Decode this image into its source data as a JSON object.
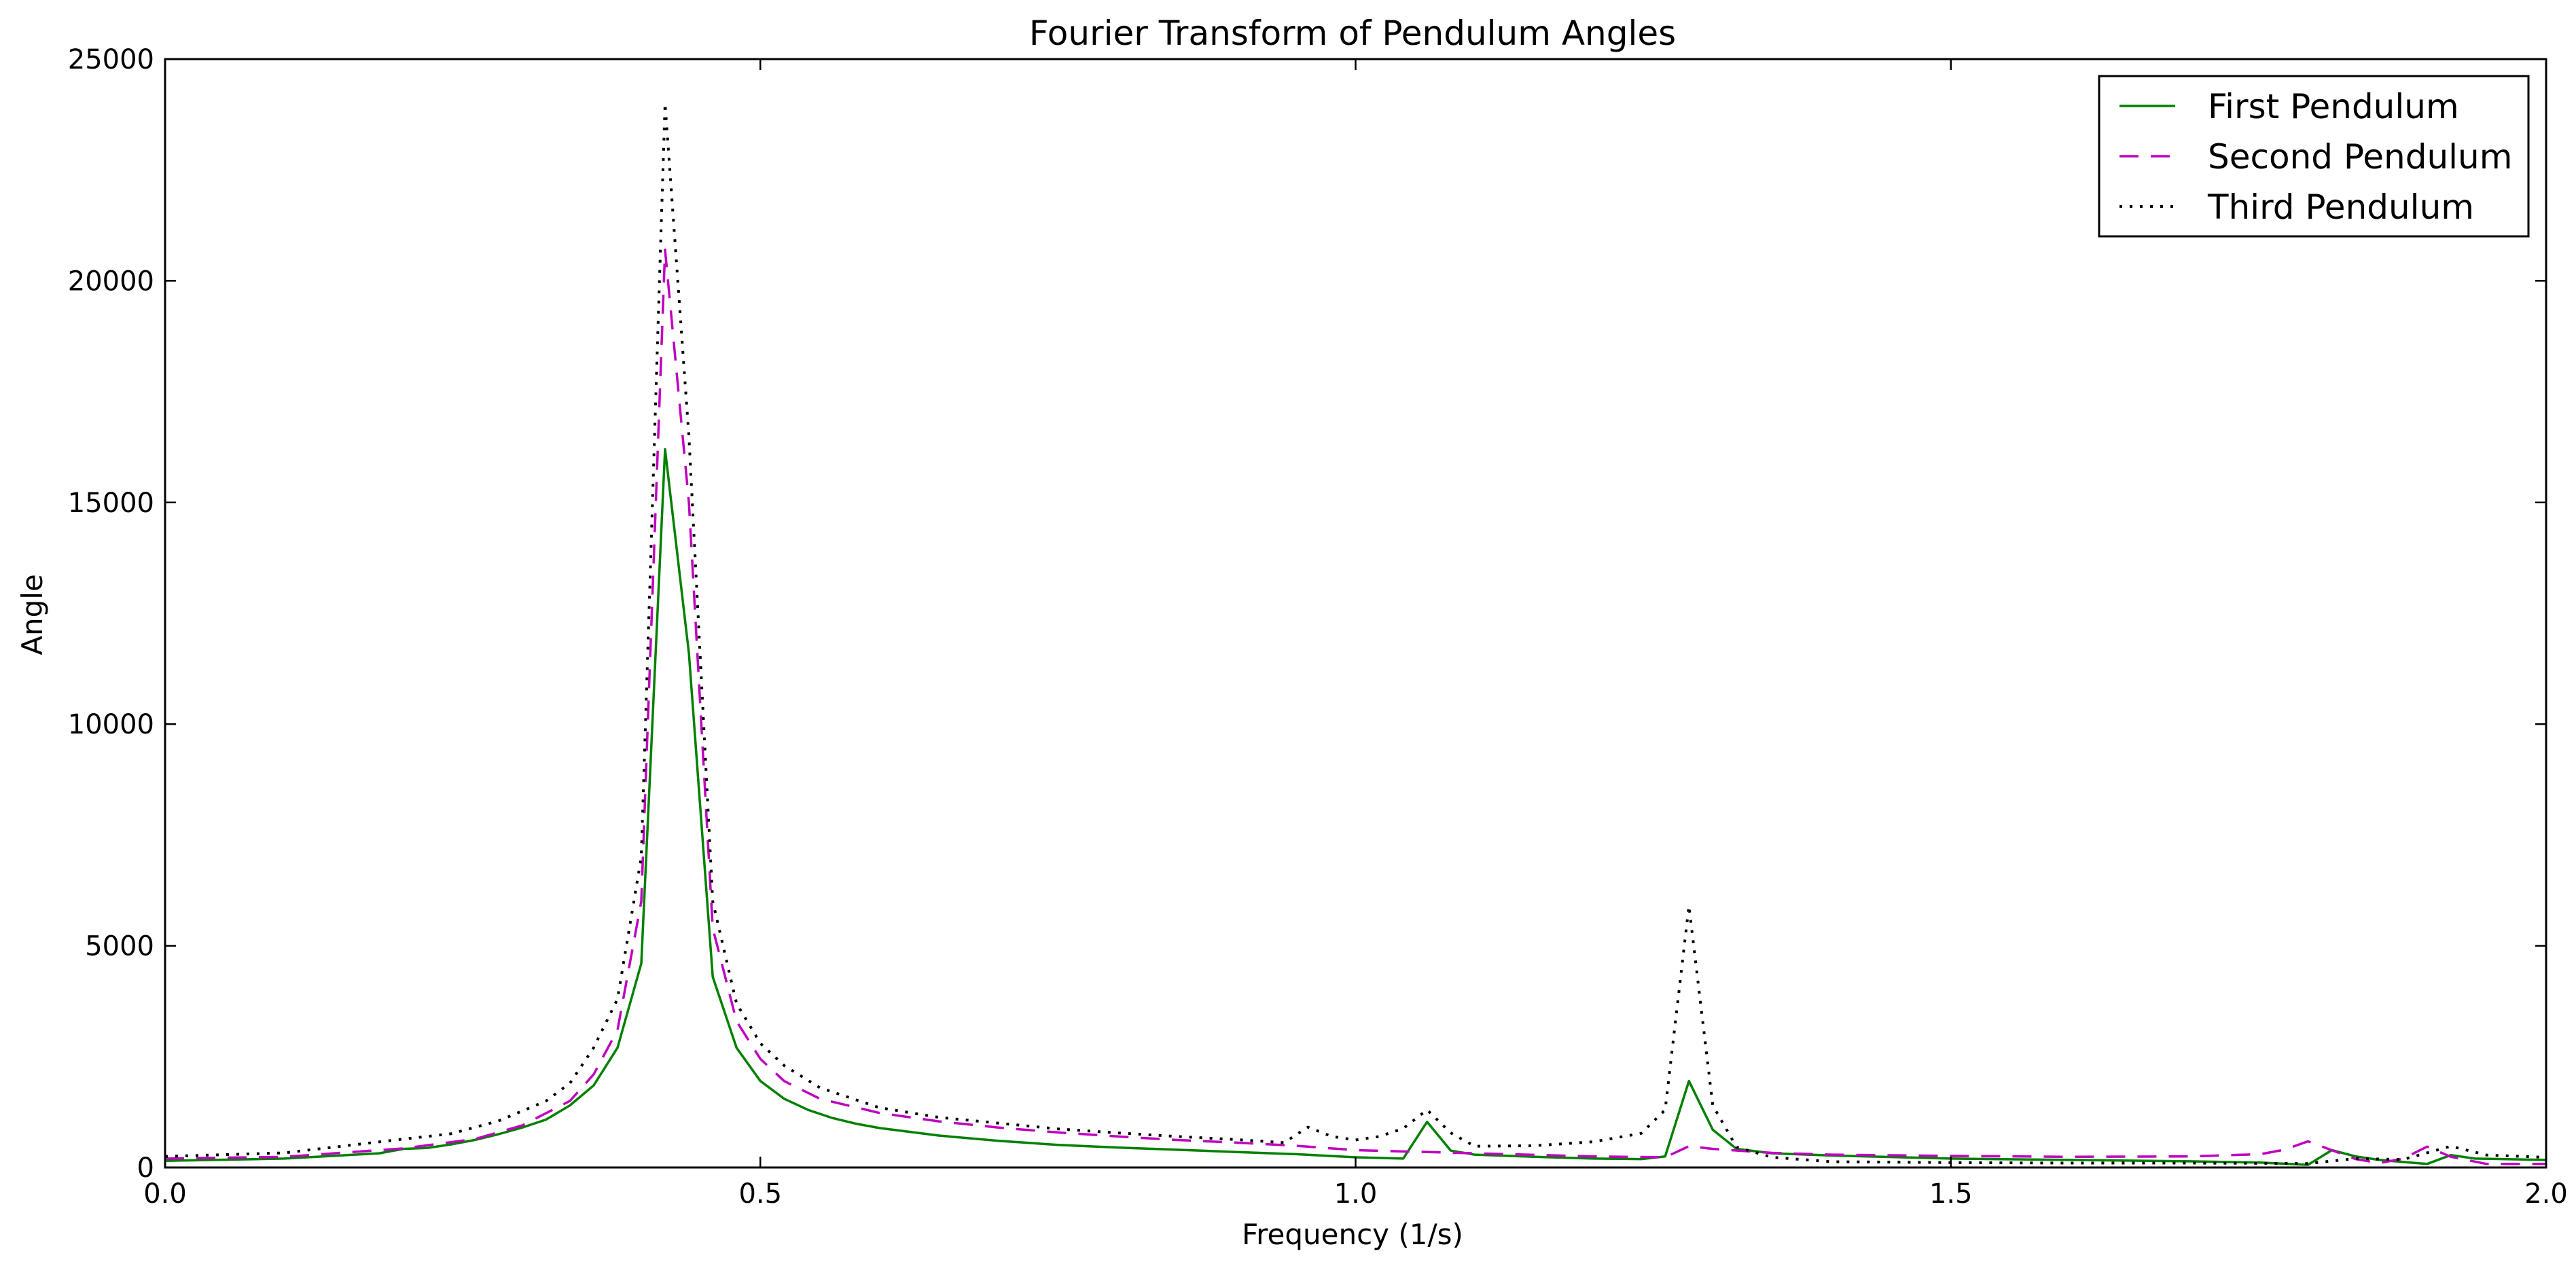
{
  "chart_data": {
    "type": "line",
    "title": "Fourier Transform of Pendulum Angles",
    "xlabel": "Frequency (1/s)",
    "ylabel": "Angle",
    "xlim": [
      0.0,
      2.0
    ],
    "ylim": [
      0,
      25000
    ],
    "xticks": [
      0.0,
      0.5,
      1.0,
      1.5,
      2.0
    ],
    "xtick_labels": [
      "0.0",
      "0.5",
      "1.0",
      "1.5",
      "2.0"
    ],
    "yticks": [
      0,
      5000,
      10000,
      15000,
      20000,
      25000
    ],
    "ytick_labels": [
      "0",
      "5000",
      "10000",
      "15000",
      "20000",
      "25000"
    ],
    "grid": false,
    "legend_position": "top-right",
    "series": [
      {
        "name": "First Pendulum",
        "color": "#008000",
        "style": "solid",
        "points": [
          [
            0.0,
            150
          ],
          [
            0.1,
            200
          ],
          [
            0.18,
            320
          ],
          [
            0.2,
            420
          ],
          [
            0.22,
            440
          ],
          [
            0.24,
            520
          ],
          [
            0.26,
            620
          ],
          [
            0.28,
            750
          ],
          [
            0.3,
            900
          ],
          [
            0.32,
            1080
          ],
          [
            0.34,
            1400
          ],
          [
            0.36,
            1850
          ],
          [
            0.38,
            2700
          ],
          [
            0.4,
            4600
          ],
          [
            0.42,
            16200
          ],
          [
            0.44,
            11600
          ],
          [
            0.46,
            4300
          ],
          [
            0.48,
            2700
          ],
          [
            0.5,
            1950
          ],
          [
            0.52,
            1550
          ],
          [
            0.54,
            1300
          ],
          [
            0.56,
            1120
          ],
          [
            0.58,
            990
          ],
          [
            0.6,
            890
          ],
          [
            0.65,
            720
          ],
          [
            0.7,
            600
          ],
          [
            0.75,
            510
          ],
          [
            0.8,
            450
          ],
          [
            0.85,
            400
          ],
          [
            0.9,
            350
          ],
          [
            0.95,
            300
          ],
          [
            1.0,
            230
          ],
          [
            1.04,
            200
          ],
          [
            1.06,
            1030
          ],
          [
            1.08,
            380
          ],
          [
            1.1,
            290
          ],
          [
            1.15,
            240
          ],
          [
            1.2,
            200
          ],
          [
            1.24,
            190
          ],
          [
            1.26,
            250
          ],
          [
            1.28,
            1950
          ],
          [
            1.3,
            850
          ],
          [
            1.32,
            420
          ],
          [
            1.35,
            320
          ],
          [
            1.4,
            270
          ],
          [
            1.5,
            200
          ],
          [
            1.6,
            170
          ],
          [
            1.7,
            140
          ],
          [
            1.76,
            110
          ],
          [
            1.8,
            60
          ],
          [
            1.82,
            390
          ],
          [
            1.84,
            250
          ],
          [
            1.86,
            170
          ],
          [
            1.9,
            80
          ],
          [
            1.92,
            280
          ],
          [
            1.94,
            200
          ],
          [
            2.0,
            170
          ]
        ]
      },
      {
        "name": "Second Pendulum",
        "color": "#bf00bf",
        "style": "dashed",
        "points": [
          [
            0.0,
            200
          ],
          [
            0.1,
            240
          ],
          [
            0.2,
            430
          ],
          [
            0.26,
            640
          ],
          [
            0.3,
            950
          ],
          [
            0.34,
            1500
          ],
          [
            0.36,
            2100
          ],
          [
            0.38,
            3100
          ],
          [
            0.4,
            6000
          ],
          [
            0.42,
            20700
          ],
          [
            0.44,
            15000
          ],
          [
            0.46,
            5400
          ],
          [
            0.48,
            3300
          ],
          [
            0.5,
            2450
          ],
          [
            0.52,
            1950
          ],
          [
            0.55,
            1550
          ],
          [
            0.6,
            1230
          ],
          [
            0.65,
            1040
          ],
          [
            0.7,
            900
          ],
          [
            0.75,
            790
          ],
          [
            0.8,
            700
          ],
          [
            0.85,
            620
          ],
          [
            0.9,
            560
          ],
          [
            0.95,
            490
          ],
          [
            1.0,
            390
          ],
          [
            1.1,
            320
          ],
          [
            1.2,
            250
          ],
          [
            1.26,
            230
          ],
          [
            1.28,
            480
          ],
          [
            1.3,
            420
          ],
          [
            1.35,
            330
          ],
          [
            1.4,
            290
          ],
          [
            1.5,
            260
          ],
          [
            1.6,
            240
          ],
          [
            1.7,
            250
          ],
          [
            1.76,
            300
          ],
          [
            1.78,
            400
          ],
          [
            1.8,
            590
          ],
          [
            1.84,
            190
          ],
          [
            1.86,
            100
          ],
          [
            1.88,
            200
          ],
          [
            1.9,
            470
          ],
          [
            1.92,
            240
          ],
          [
            1.95,
            80
          ],
          [
            2.0,
            80
          ]
        ]
      },
      {
        "name": "Third Pendulum",
        "color": "#000000",
        "style": "dotted",
        "points": [
          [
            0.0,
            250
          ],
          [
            0.1,
            330
          ],
          [
            0.2,
            640
          ],
          [
            0.24,
            760
          ],
          [
            0.28,
            1050
          ],
          [
            0.32,
            1500
          ],
          [
            0.34,
            1900
          ],
          [
            0.36,
            2700
          ],
          [
            0.38,
            3800
          ],
          [
            0.4,
            7000
          ],
          [
            0.42,
            24000
          ],
          [
            0.44,
            16500
          ],
          [
            0.46,
            6000
          ],
          [
            0.48,
            3700
          ],
          [
            0.5,
            2800
          ],
          [
            0.52,
            2300
          ],
          [
            0.55,
            1800
          ],
          [
            0.6,
            1350
          ],
          [
            0.65,
            1130
          ],
          [
            0.7,
            1000
          ],
          [
            0.75,
            870
          ],
          [
            0.8,
            780
          ],
          [
            0.85,
            700
          ],
          [
            0.9,
            630
          ],
          [
            0.94,
            560
          ],
          [
            0.96,
            910
          ],
          [
            0.98,
            700
          ],
          [
            1.0,
            620
          ],
          [
            1.02,
            700
          ],
          [
            1.04,
            880
          ],
          [
            1.06,
            1300
          ],
          [
            1.08,
            780
          ],
          [
            1.1,
            480
          ],
          [
            1.15,
            490
          ],
          [
            1.2,
            580
          ],
          [
            1.24,
            770
          ],
          [
            1.26,
            1300
          ],
          [
            1.28,
            5900
          ],
          [
            1.3,
            1400
          ],
          [
            1.32,
            460
          ],
          [
            1.35,
            230
          ],
          [
            1.4,
            130
          ],
          [
            1.5,
            110
          ],
          [
            1.6,
            100
          ],
          [
            1.7,
            100
          ],
          [
            1.8,
            90
          ],
          [
            1.84,
            200
          ],
          [
            1.88,
            180
          ],
          [
            1.92,
            480
          ],
          [
            1.95,
            280
          ],
          [
            2.0,
            230
          ]
        ]
      }
    ]
  }
}
